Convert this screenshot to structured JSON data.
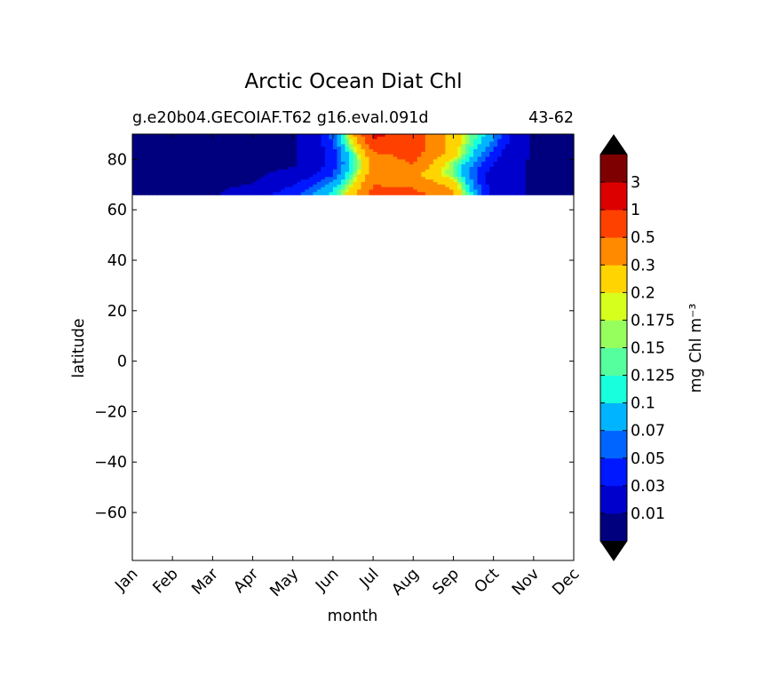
{
  "chart_data": {
    "type": "heatmap",
    "title": "Arctic Ocean Diat Chl",
    "subtitle_left": "g.e20b04.GECOIAF.T62 g16.eval.091d",
    "subtitle_right": "43-62",
    "xlabel": "month",
    "ylabel": "latitude",
    "colorbar_label": "mg Chl m⁻³",
    "x_categories": [
      "Jan",
      "Feb",
      "Mar",
      "Apr",
      "May",
      "Jun",
      "Jul",
      "Aug",
      "Sep",
      "Oct",
      "Nov",
      "Dec"
    ],
    "y_ticks": [
      80,
      60,
      40,
      20,
      0,
      -20,
      -40,
      -60
    ],
    "y_tick_labels": [
      "80",
      "60",
      "40",
      "20",
      "0",
      "−20",
      "−40",
      "−60"
    ],
    "ylim": [
      -79,
      90
    ],
    "levels": [
      0.01,
      0.03,
      0.05,
      0.07,
      0.1,
      0.125,
      0.15,
      0.175,
      0.2,
      0.3,
      0.5,
      1,
      3
    ],
    "level_labels": [
      "0.01",
      "0.03",
      "0.05",
      "0.07",
      "0.1",
      "0.125",
      "0.15",
      "0.175",
      "0.2",
      "0.3",
      "0.5",
      "1",
      "3"
    ],
    "colors": [
      "#00007f",
      "#0000cd",
      "#0018ff",
      "#0064ff",
      "#00b4ff",
      "#18ffdd",
      "#55ff9e",
      "#96ff5e",
      "#d6ff1e",
      "#ffd400",
      "#ff8a00",
      "#ff4100",
      "#dc0000",
      "#7f0000"
    ],
    "latitudes": [
      66,
      70,
      74,
      78,
      82,
      86,
      90
    ],
    "values": [
      [
        0.008,
        0.008,
        0.008,
        0.025,
        0.045,
        0.12,
        0.6,
        0.6,
        0.35,
        0.025,
        0.008,
        0.008
      ],
      [
        0.008,
        0.008,
        0.008,
        0.01,
        0.03,
        0.08,
        0.5,
        0.45,
        0.25,
        0.02,
        0.008,
        0.008
      ],
      [
        0.008,
        0.008,
        0.008,
        0.008,
        0.015,
        0.05,
        0.4,
        0.35,
        0.15,
        0.02,
        0.008,
        0.008
      ],
      [
        0.008,
        0.008,
        0.008,
        0.008,
        0.008,
        0.04,
        0.35,
        0.5,
        0.15,
        0.03,
        0.008,
        0.008
      ],
      [
        0.008,
        0.008,
        0.008,
        0.008,
        0.008,
        0.04,
        0.45,
        0.6,
        0.25,
        0.04,
        0.008,
        0.008
      ],
      [
        0.008,
        0.008,
        0.008,
        0.008,
        0.008,
        0.05,
        0.8,
        0.7,
        0.25,
        0.06,
        0.008,
        0.008
      ],
      [
        0.008,
        0.008,
        0.008,
        0.008,
        0.008,
        0.06,
        1.2,
        0.7,
        0.25,
        0.08,
        0.008,
        0.008
      ]
    ],
    "colorbar_extend": "both",
    "grid": false
  }
}
